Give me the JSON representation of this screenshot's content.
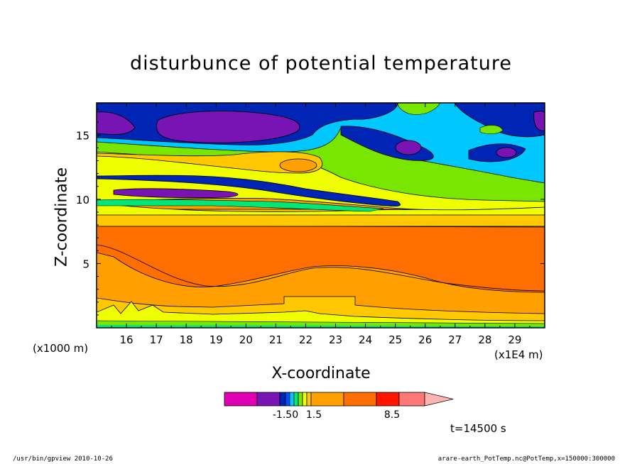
{
  "chart_data": {
    "type": "heatmap",
    "title": "disturbunce of potential temperature",
    "xlabel": "X-coordinate",
    "ylabel": "Z-coordinate",
    "x_multiplier": "(x1E4 m)",
    "y_multiplier": "(x1000 m)",
    "xlim": [
      15.0,
      30.0
    ],
    "ylim": [
      0.0,
      17.5
    ],
    "x_ticks": [
      16,
      17,
      18,
      19,
      20,
      21,
      22,
      23,
      24,
      25,
      26,
      27,
      28,
      29
    ],
    "y_ticks": [
      5,
      10,
      15
    ],
    "colorbar": {
      "colors": [
        "#e000b4",
        "#7814b4",
        "#0024b4",
        "#0050ff",
        "#00c8ff",
        "#00e678",
        "#78e600",
        "#f0ff00",
        "#ffc800",
        "#ffa000",
        "#ff6e00",
        "#ff1400",
        "#ff7878",
        "#ffb4b4"
      ],
      "labels": [
        "-1.50",
        "1.5",
        "8.5"
      ],
      "extend": "max"
    },
    "contour_levels": [
      -1.5,
      1.5,
      8.5
    ],
    "time_label": "t=14500 s"
  },
  "footer": {
    "left": "/usr/bin/gpview   2010-10-26",
    "right": "arare-earth_PotTemp.nc@PotTemp,x=150000:300000"
  }
}
